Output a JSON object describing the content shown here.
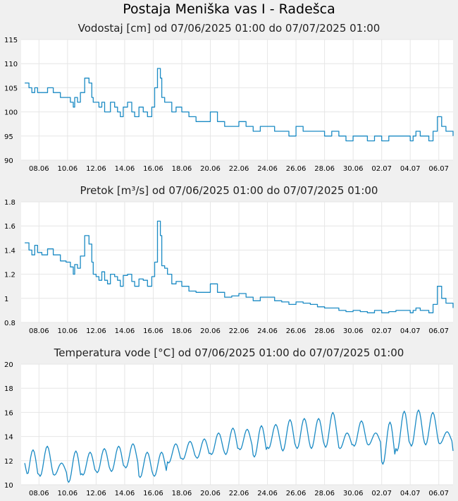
{
  "title": "Postaja Meniška vas I - Radešca",
  "colors": {
    "line": "#1a8ac4",
    "grid": "#e6e6e6",
    "plot_bg": "#ffffff",
    "page_bg": "#f0f0f0"
  },
  "x_tick_labels": [
    "08.06",
    "10.06",
    "12.06",
    "14.06",
    "16.06",
    "18.06",
    "20.06",
    "22.06",
    "24.06",
    "26.06",
    "28.06",
    "30.06",
    "02.07",
    "04.07",
    "06.07"
  ],
  "chart_data": [
    {
      "type": "line",
      "title": "Vodostaj [cm] od 07/06/2025 01:00 do 07/07/2025 01:00",
      "ylim": [
        90,
        115
      ],
      "yticks": [
        "90",
        "95",
        "100",
        "105",
        "110",
        "115"
      ],
      "series": [
        {
          "name": "Vodostaj [cm]",
          "days": [
            0,
            0.3,
            0.5,
            0.7,
            0.9,
            1.2,
            1.6,
            2.0,
            2.5,
            2.9,
            3.2,
            3.4,
            3.5,
            3.7,
            3.9,
            4.2,
            4.5,
            4.7,
            4.8,
            5.0,
            5.2,
            5.4,
            5.6,
            5.8,
            6.0,
            6.3,
            6.5,
            6.7,
            6.9,
            7.2,
            7.5,
            7.7,
            8.0,
            8.3,
            8.6,
            8.9,
            9.1,
            9.3,
            9.5,
            9.6,
            9.8,
            10.0,
            10.3,
            10.6,
            11.0,
            11.5,
            12.0,
            12.5,
            13.0,
            13.5,
            14.0,
            14.5,
            15.0,
            15.5,
            16.0,
            16.5,
            17.0,
            17.5,
            18.0,
            18.5,
            19.0,
            19.5,
            20.0,
            20.5,
            21.0,
            21.5,
            22.0,
            22.5,
            23.0,
            23.5,
            24.0,
            24.5,
            25.0,
            25.5,
            26.0,
            26.5,
            27.0,
            27.2,
            27.4,
            27.7,
            28.0,
            28.3,
            28.6,
            28.9,
            29.2,
            29.5,
            30.0
          ],
          "values": [
            106,
            105,
            104,
            105,
            104,
            104,
            105,
            104,
            103,
            103,
            102,
            101,
            103,
            102,
            104,
            107,
            106,
            103,
            102,
            102,
            101,
            102,
            100,
            100,
            102,
            101,
            100,
            99,
            101,
            102,
            100,
            99,
            101,
            100,
            99,
            101,
            105,
            109,
            107,
            103,
            102,
            102,
            100,
            101,
            100,
            99,
            98,
            98,
            100,
            98,
            97,
            97,
            98,
            97,
            96,
            97,
            97,
            96,
            96,
            95,
            97,
            96,
            96,
            96,
            95,
            96,
            95,
            94,
            95,
            95,
            94,
            95,
            94,
            95,
            95,
            95,
            94,
            95,
            96,
            95,
            95,
            94,
            96,
            99,
            97,
            96,
            95
          ]
        }
      ]
    },
    {
      "type": "line",
      "title": "Pretok [m³/s] od 07/06/2025 01:00 do 07/07/2025 01:00",
      "ylim": [
        0.8,
        1.8
      ],
      "yticks": [
        "0.8",
        "1",
        "1.2",
        "1.4",
        "1.6",
        "1.8"
      ],
      "series": [
        {
          "name": "Pretok [m³/s]",
          "days": [
            0,
            0.3,
            0.5,
            0.7,
            0.9,
            1.2,
            1.6,
            2.0,
            2.5,
            2.9,
            3.2,
            3.4,
            3.5,
            3.7,
            3.9,
            4.2,
            4.5,
            4.7,
            4.8,
            5.0,
            5.2,
            5.4,
            5.6,
            5.8,
            6.0,
            6.3,
            6.5,
            6.7,
            6.9,
            7.2,
            7.5,
            7.7,
            8.0,
            8.3,
            8.6,
            8.9,
            9.1,
            9.3,
            9.5,
            9.6,
            9.8,
            10.0,
            10.3,
            10.6,
            11.0,
            11.5,
            12.0,
            12.5,
            13.0,
            13.5,
            14.0,
            14.5,
            15.0,
            15.5,
            16.0,
            16.5,
            17.0,
            17.5,
            18.0,
            18.5,
            19.0,
            19.5,
            20.0,
            20.5,
            21.0,
            21.5,
            22.0,
            22.5,
            23.0,
            23.5,
            24.0,
            24.5,
            25.0,
            25.5,
            26.0,
            26.5,
            27.0,
            27.2,
            27.4,
            27.7,
            28.0,
            28.3,
            28.6,
            28.9,
            29.2,
            29.5,
            30.0
          ],
          "values": [
            1.46,
            1.4,
            1.36,
            1.44,
            1.38,
            1.36,
            1.41,
            1.36,
            1.31,
            1.3,
            1.26,
            1.2,
            1.28,
            1.25,
            1.35,
            1.52,
            1.45,
            1.3,
            1.2,
            1.18,
            1.15,
            1.22,
            1.15,
            1.12,
            1.2,
            1.18,
            1.15,
            1.1,
            1.19,
            1.2,
            1.14,
            1.1,
            1.16,
            1.15,
            1.1,
            1.18,
            1.3,
            1.64,
            1.52,
            1.27,
            1.25,
            1.2,
            1.12,
            1.14,
            1.1,
            1.06,
            1.05,
            1.05,
            1.12,
            1.05,
            1.01,
            1.02,
            1.04,
            1.01,
            0.98,
            1.01,
            1.01,
            0.98,
            0.97,
            0.95,
            0.97,
            0.96,
            0.95,
            0.93,
            0.92,
            0.92,
            0.9,
            0.89,
            0.9,
            0.89,
            0.88,
            0.9,
            0.88,
            0.89,
            0.9,
            0.9,
            0.88,
            0.9,
            0.92,
            0.9,
            0.9,
            0.88,
            0.95,
            1.1,
            1.0,
            0.96,
            0.92
          ]
        }
      ]
    },
    {
      "type": "line",
      "title": "Temperatura vode [°C] od 07/06/2025 01:00 do 07/07/2025 01:00",
      "ylim": [
        10,
        20
      ],
      "yticks": [
        "10",
        "12",
        "14",
        "16",
        "18",
        "20"
      ],
      "series": [
        {
          "name": "Temperatura vode [°C]",
          "daily_min": [
            10.3,
            10.7,
            10.8,
            10.2,
            10.8,
            11.0,
            11.1,
            11.4,
            10.6,
            10.7,
            11.8,
            12.1,
            12.2,
            12.5,
            12.5,
            12.9,
            12.3,
            13.0,
            12.8,
            13.0,
            13.0,
            13.1,
            13.0,
            13.2,
            13.3,
            11.7,
            12.8,
            13.2,
            13.3,
            13.4
          ],
          "daily_max": [
            12.9,
            13.2,
            11.8,
            12.8,
            12.7,
            13.0,
            13.2,
            13.4,
            12.7,
            12.7,
            13.4,
            13.6,
            13.8,
            14.3,
            14.7,
            14.6,
            14.9,
            15.0,
            15.4,
            15.5,
            15.5,
            16.0,
            14.3,
            15.3,
            14.3,
            15.2,
            16.1,
            16.2,
            16.0,
            14.4
          ],
          "start": 11.8,
          "end": 12.8
        }
      ]
    }
  ]
}
